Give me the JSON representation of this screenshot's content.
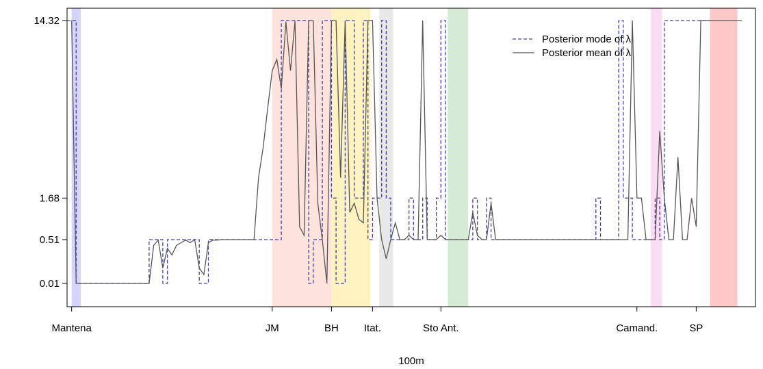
{
  "chart_data": {
    "type": "line",
    "title": "",
    "xlabel": "100m",
    "ylabel": "",
    "xlim": [
      -1,
      150
    ],
    "ylim_display": [
      0.01,
      14.32
    ],
    "y_ticks": [
      {
        "value": 0.01,
        "label": "0.01"
      },
      {
        "value": 0.51,
        "label": "0.51"
      },
      {
        "value": 1.68,
        "label": "1.68"
      },
      {
        "value": 14.32,
        "label": "14.32"
      }
    ],
    "x_ticks": [
      {
        "value": 0,
        "label": "Mantena"
      },
      {
        "value": 44,
        "label": "JM"
      },
      {
        "value": 57,
        "label": "BH"
      },
      {
        "value": 66,
        "label": "Itat."
      },
      {
        "value": 81,
        "label": "Sto Ant."
      },
      {
        "value": 124,
        "label": "Camand."
      },
      {
        "value": 137,
        "label": "SP"
      }
    ],
    "bands": [
      {
        "from": 0,
        "to": 2,
        "color": "#d4d4ff"
      },
      {
        "from": 44,
        "to": 57,
        "color": "#fde3dc"
      },
      {
        "from": 57,
        "to": 65.5,
        "color": "#fdf2c0"
      },
      {
        "from": 67.5,
        "to": 70.5,
        "color": "#e8e8e8"
      },
      {
        "from": 82.5,
        "to": 87,
        "color": "#d6ebd6"
      },
      {
        "from": 127,
        "to": 129.5,
        "color": "#fbdcf2"
      },
      {
        "from": 140,
        "to": 146,
        "color": "#ffc8c8"
      }
    ],
    "legend": {
      "position": "top-right",
      "entries": [
        {
          "label": "Posterior mode of λ",
          "style": "dashed",
          "color": "#3d3db4"
        },
        {
          "label": "Posterior mean of λ",
          "style": "solid",
          "color": "#555555"
        }
      ]
    },
    "series": [
      {
        "name": "Posterior mode of λ",
        "style": "step-dashed",
        "color": "#3d3db4",
        "x_start": -1,
        "values": [
          14.32,
          14.32,
          0.01,
          0.01,
          0.01,
          0.01,
          0.01,
          0.01,
          0.01,
          0.01,
          0.01,
          0.01,
          0.01,
          0.01,
          0.01,
          0.01,
          0.01,
          0.01,
          0.51,
          0.51,
          0.51,
          0.01,
          0.51,
          0.51,
          0.51,
          0.51,
          0.51,
          0.51,
          0.51,
          0.01,
          0.01,
          0.51,
          0.51,
          0.51,
          0.51,
          0.51,
          0.51,
          0.51,
          0.51,
          0.51,
          0.51,
          0.51,
          0.51,
          0.51,
          0.51,
          0.51,
          0.51,
          14.32,
          14.32,
          14.32,
          14.32,
          14.32,
          14.32,
          0.01,
          0.51,
          0.51,
          14.32,
          14.32,
          1.68,
          0.01,
          0.01,
          14.32,
          14.32,
          1.68,
          1.68,
          14.32,
          0.51,
          1.68,
          1.68,
          14.32,
          1.68,
          0.51,
          0.51,
          0.51,
          0.51,
          1.68,
          0.51,
          0.51,
          1.68,
          0.51,
          0.51,
          1.68,
          14.32,
          0.51,
          0.51,
          0.51,
          0.51,
          0.51,
          0.51,
          1.68,
          0.51,
          0.51,
          1.68,
          0.51,
          0.51,
          0.51,
          0.51,
          0.51,
          0.51,
          0.51,
          0.51,
          0.51,
          0.51,
          0.51,
          0.51,
          0.51,
          0.51,
          0.51,
          0.51,
          0.51,
          0.51,
          0.51,
          0.51,
          0.51,
          0.51,
          0.51,
          1.68,
          0.51,
          0.51,
          0.51,
          0.51,
          14.32,
          1.68,
          1.68,
          0.51,
          0.51,
          0.51,
          0.51,
          0.51,
          1.68,
          0.51,
          14.32,
          14.32,
          14.32,
          14.32,
          14.32,
          14.32,
          14.32,
          14.32,
          14.32,
          14.32
        ]
      },
      {
        "name": "Posterior mean of λ",
        "style": "solid",
        "color": "#555555",
        "x_start": 0,
        "values": [
          14.32,
          0.01,
          0.01,
          0.01,
          0.01,
          0.01,
          0.01,
          0.01,
          0.01,
          0.01,
          0.01,
          0.01,
          0.01,
          0.01,
          0.01,
          0.01,
          0.01,
          0.01,
          0.4,
          0.5,
          0.1,
          0.35,
          0.25,
          0.4,
          0.45,
          0.5,
          0.45,
          0.51,
          0.1,
          0.05,
          0.45,
          0.5,
          0.5,
          0.51,
          0.51,
          0.51,
          0.51,
          0.51,
          0.51,
          0.51,
          0.51,
          2.5,
          4.0,
          6.5,
          9.5,
          10.5,
          8.0,
          14.2,
          9.5,
          14.3,
          0.8,
          0.6,
          14.3,
          14.3,
          1.5,
          0.5,
          0.01,
          14.3,
          14.3,
          2.5,
          14.32,
          1.2,
          1.5,
          1.0,
          0.9,
          14.32,
          14.32,
          1.68,
          0.51,
          0.2,
          0.51,
          0.9,
          0.51,
          0.51,
          0.6,
          0.51,
          0.51,
          14.32,
          0.51,
          0.51,
          0.51,
          0.6,
          0.51,
          0.51,
          0.51,
          0.51,
          0.51,
          0.51,
          1.2,
          0.6,
          0.51,
          0.51,
          1.5,
          0.51,
          0.51,
          0.51,
          0.51,
          0.51,
          0.51,
          0.51,
          0.51,
          0.51,
          0.51,
          0.51,
          0.51,
          0.51,
          0.51,
          0.51,
          0.51,
          0.51,
          0.51,
          0.51,
          0.51,
          0.51,
          0.51,
          0.51,
          0.51,
          0.51,
          0.51,
          0.51,
          0.51,
          0.51,
          0.51,
          14.32,
          1.68,
          1.68,
          0.51,
          0.51,
          0.51,
          5.0,
          1.68,
          0.51,
          0.51,
          3.5,
          0.51,
          0.51,
          1.68,
          0.8,
          14.32,
          14.32,
          14.32,
          14.32,
          14.32,
          14.32,
          14.32,
          14.32,
          14.32,
          14.32
        ]
      }
    ]
  }
}
